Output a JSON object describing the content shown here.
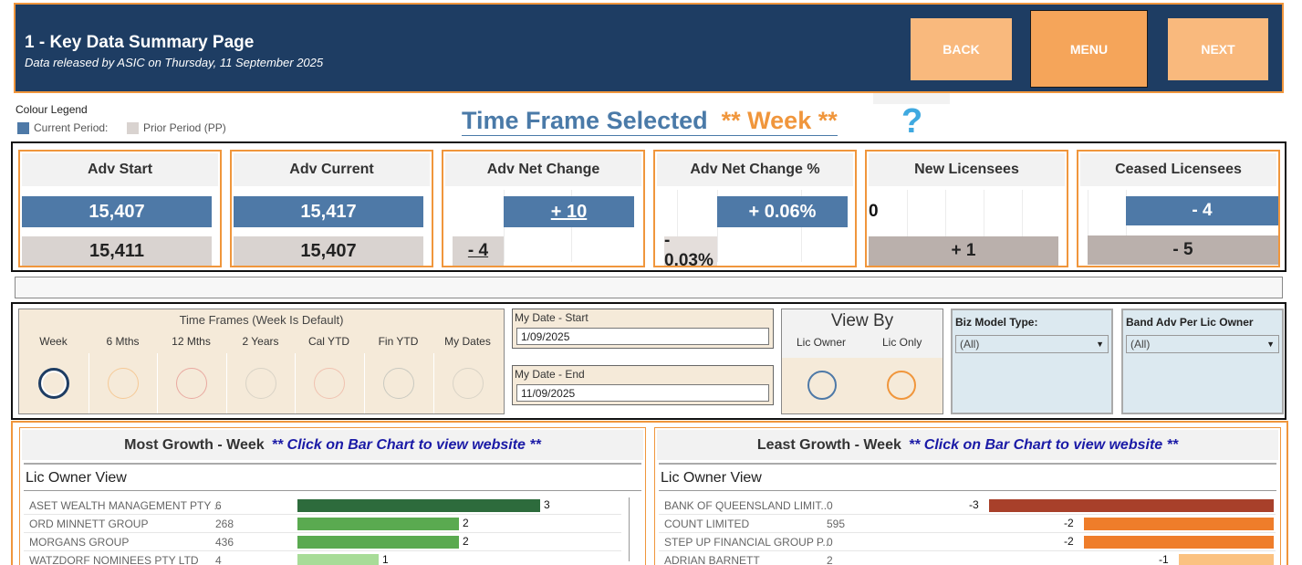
{
  "header": {
    "title": "1 - Key Data Summary Page",
    "subtitle": "Data released by ASIC on Thursday, 11 September 2025",
    "back_label": "BACK",
    "menu_label": "MENU",
    "next_label": "NEXT",
    "colors": {
      "background": "#1e3d63",
      "border": "#f0963c"
    }
  },
  "legend": {
    "title": "Colour Legend",
    "current_label": "Current Period:",
    "prior_label": "Prior Period (PP)",
    "colors": {
      "current": "#4e79a7",
      "prior": "#d9d3d0"
    }
  },
  "time_frame": {
    "prefix": "Time Frame Selected",
    "value": "** Week **",
    "help_icon": "question-mark-icon"
  },
  "kpis": [
    {
      "title": "Adv Start",
      "current": "15,407",
      "prior": "15,411"
    },
    {
      "title": "Adv Current",
      "current": "15,417",
      "prior": "15,407"
    },
    {
      "title": "Adv Net Change",
      "current": "+ 10",
      "prior": "- 4"
    },
    {
      "title": "Adv Net Change %",
      "current": "+ 0.06%",
      "prior": "- 0.03%"
    },
    {
      "title": "New Licensees",
      "current": "0",
      "prior": "+ 1"
    },
    {
      "title": "Ceased Licensees",
      "current": "- 4",
      "prior": "- 5"
    }
  ],
  "filters": {
    "time_frames": {
      "title": "Time Frames (Week Is Default)",
      "options": [
        "Week",
        "6 Mths",
        "12 Mths",
        "2 Years",
        "Cal YTD",
        "Fin YTD",
        "My Dates"
      ],
      "selected": "Week",
      "circle_colors": [
        "#1e3d63",
        "#f5c996",
        "#e9a9a0",
        "#d9d3c6",
        "#f0c2b0",
        "#c9c9c0",
        "#d9d3c6"
      ]
    },
    "date_start": {
      "label": "My Date - Start",
      "value": "1/09/2025"
    },
    "date_end": {
      "label": "My Date - End",
      "value": "11/09/2025"
    },
    "view_by": {
      "title": "View By",
      "options": [
        "Lic Owner",
        "Lic Only"
      ],
      "circle_colors": [
        "#4e79a7",
        "#f0963c"
      ]
    },
    "biz_model": {
      "label": "Biz Model Type:",
      "value": "(All)"
    },
    "band_adv": {
      "label": "Band Adv Per Lic Owner",
      "value": "(All)"
    }
  },
  "most_growth": {
    "title": "Most Growth - Week",
    "hint": "** Click on Bar Chart to view website **",
    "subtitle": "Lic Owner View",
    "rows": [
      {
        "name": "ASET WEALTH MANAGEMENT PTY ..",
        "count": "6",
        "change": 3,
        "color": "#2d6b3c"
      },
      {
        "name": "ORD MINNETT GROUP",
        "count": "268",
        "change": 2,
        "color": "#5aaa50"
      },
      {
        "name": "MORGANS GROUP",
        "count": "436",
        "change": 2,
        "color": "#5aaa50"
      },
      {
        "name": "WATZDORF NOMINEES PTY LTD",
        "count": "4",
        "change": 1,
        "color": "#a8dc98"
      }
    ]
  },
  "least_growth": {
    "title": "Least Growth - Week",
    "hint": "** Click on Bar Chart to view website **",
    "subtitle": "Lic Owner View",
    "rows": [
      {
        "name": "BANK OF QUEENSLAND LIMIT..",
        "count": "0",
        "change": -3,
        "color": "#a8402a"
      },
      {
        "name": "COUNT LIMITED",
        "count": "595",
        "change": -2,
        "color": "#ef7d2a"
      },
      {
        "name": "STEP UP FINANCIAL GROUP P..",
        "count": "0",
        "change": -2,
        "color": "#ef7d2a"
      },
      {
        "name": "ADRIAN  BARNETT",
        "count": "2",
        "change": -1,
        "color": "#fbc281"
      }
    ]
  }
}
